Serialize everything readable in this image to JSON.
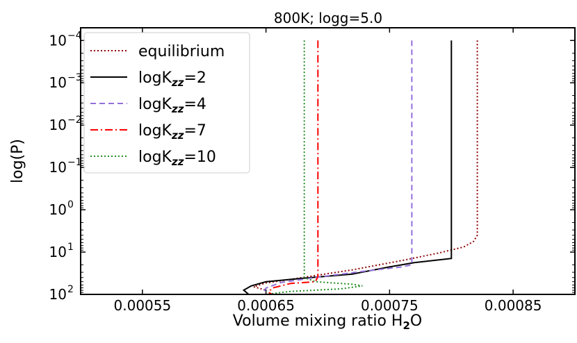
{
  "chart_data": {
    "type": "line",
    "title": "800K; logg=5.0",
    "xlabel_main": "Volume mixing ratio H",
    "xlabel_sub": "2",
    "xlabel_tail": "O",
    "ylabel": "log(P)",
    "xlim": [
      0.0005,
      0.0009
    ],
    "ylim_log10P": [
      -4.3,
      2
    ],
    "x_inverted_y": true,
    "x_ticks": [
      {
        "value": 0.00055,
        "label": "0.00055"
      },
      {
        "value": 0.00065,
        "label": "0.00065"
      },
      {
        "value": 0.00075,
        "label": "0.00075"
      },
      {
        "value": 0.00085,
        "label": "0.00085"
      }
    ],
    "y_ticks": [
      {
        "exp": -4,
        "base": "10",
        "sup": "−4"
      },
      {
        "exp": -3,
        "base": "10",
        "sup": "−3"
      },
      {
        "exp": -2,
        "base": "10",
        "sup": "−2"
      },
      {
        "exp": -1,
        "base": "10",
        "sup": "−1"
      },
      {
        "exp": 0,
        "base": "10",
        "sup": "0"
      },
      {
        "exp": 1,
        "base": "10",
        "sup": "1"
      },
      {
        "exp": 2,
        "base": "10",
        "sup": "2"
      }
    ],
    "series": [
      {
        "name": "equilibrium",
        "label_base": "equilibrium",
        "label_sub": "",
        "label_tail": "",
        "color": "#8b0000",
        "dash": "2,3",
        "width": 2,
        "points": [
          [
            0.000821,
            -4
          ],
          [
            0.000821,
            0.6
          ],
          [
            0.000818,
            0.75
          ],
          [
            0.00081,
            0.88
          ],
          [
            0.00079,
            1.02
          ],
          [
            0.00076,
            1.2
          ],
          [
            0.00072,
            1.42
          ],
          [
            0.00068,
            1.6
          ],
          [
            0.00065,
            1.73
          ],
          [
            0.00064,
            1.82
          ],
          [
            0.00065,
            1.9
          ]
        ]
      },
      {
        "name": "logKzz=2",
        "label_base": "logK",
        "label_sub": "zz",
        "label_tail": "=2",
        "color": "#000000",
        "dash": "",
        "width": 2,
        "points": [
          [
            0.0008,
            -4
          ],
          [
            0.0008,
            1.15
          ],
          [
            0.00077,
            1.25
          ],
          [
            0.00075,
            1.35
          ],
          [
            0.00072,
            1.52
          ],
          [
            0.00068,
            1.62
          ],
          [
            0.00065,
            1.7
          ],
          [
            0.000638,
            1.8
          ],
          [
            0.000632,
            1.9
          ],
          [
            0.000636,
            2
          ]
        ]
      },
      {
        "name": "logKzz=4",
        "label_base": "logK",
        "label_sub": "zz",
        "label_tail": "=4",
        "color": "#9370db",
        "dash": "8,5",
        "width": 2,
        "points": [
          [
            0.000768,
            -4
          ],
          [
            0.000768,
            1.3
          ],
          [
            0.00076,
            1.35
          ],
          [
            0.00073,
            1.45
          ],
          [
            0.00069,
            1.6
          ],
          [
            0.000662,
            1.72
          ],
          [
            0.00065,
            1.85
          ],
          [
            0.000648,
            1.95
          ],
          [
            0.00065,
            2
          ]
        ]
      },
      {
        "name": "logKzz=7",
        "label_base": "logK",
        "label_sub": "zz",
        "label_tail": "=7",
        "color": "#ff0000",
        "dash": "11,4,2,4",
        "width": 2,
        "points": [
          [
            0.000692,
            -4
          ],
          [
            0.000692,
            1.58
          ],
          [
            0.00069,
            1.7
          ],
          [
            0.00067,
            1.74
          ],
          [
            0.000655,
            1.85
          ],
          [
            0.000652,
            1.95
          ],
          [
            0.000655,
            2
          ]
        ]
      },
      {
        "name": "logKzz=10",
        "label_base": "logK",
        "label_sub": "zz",
        "label_tail": "=10",
        "color": "#228b22",
        "dash": "2,3",
        "width": 2,
        "points": [
          [
            0.000681,
            -4
          ],
          [
            0.000681,
            1.6
          ],
          [
            0.00069,
            1.7
          ],
          [
            0.00072,
            1.76
          ],
          [
            0.000728,
            1.8
          ],
          [
            0.00071,
            1.87
          ],
          [
            0.00067,
            1.93
          ],
          [
            0.00065,
            2
          ]
        ]
      }
    ],
    "legend_position": "top-left"
  }
}
